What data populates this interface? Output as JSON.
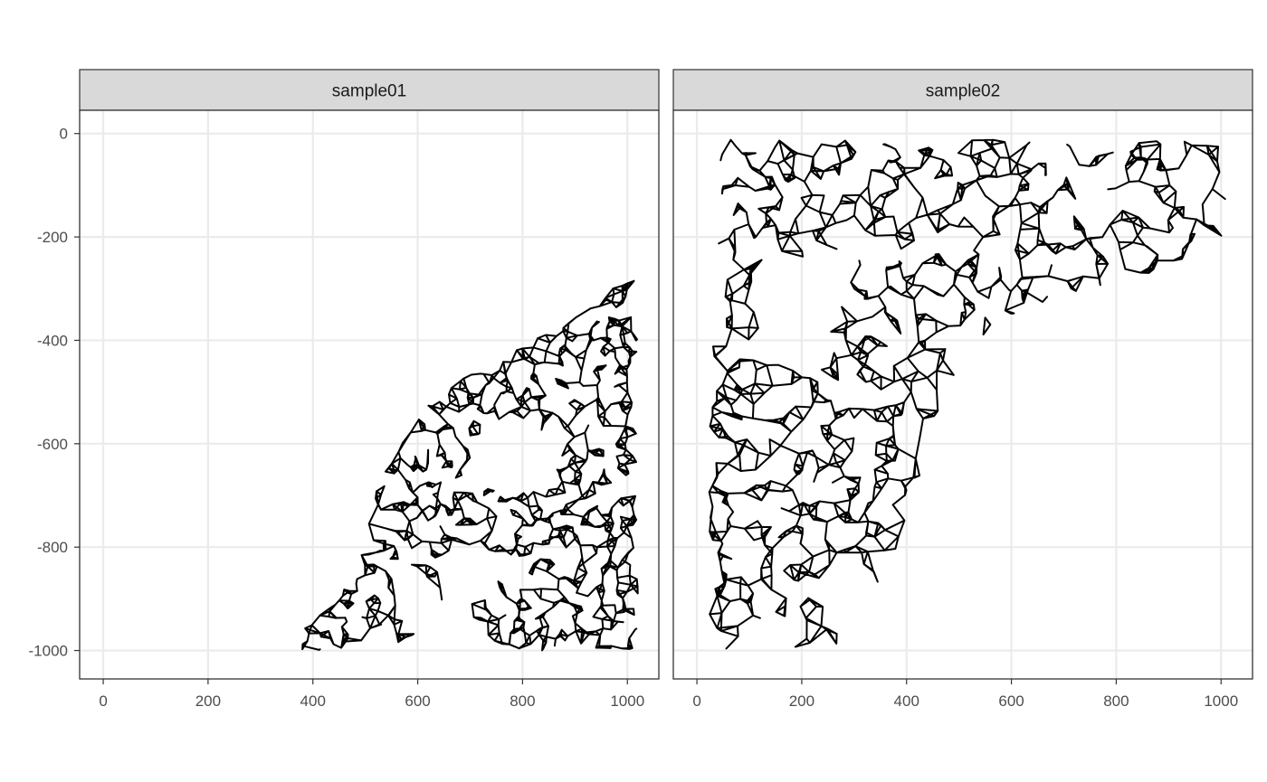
{
  "chart_data": {
    "type": "network",
    "facets": [
      {
        "label": "sample01",
        "outline": [
          [
            340,
            -1000
          ],
          [
            390,
            -950
          ],
          [
            460,
            -880
          ],
          [
            500,
            -800
          ],
          [
            510,
            -720
          ],
          [
            560,
            -580
          ],
          [
            620,
            -520
          ],
          [
            700,
            -460
          ],
          [
            800,
            -410
          ],
          [
            880,
            -370
          ],
          [
            940,
            -330
          ],
          [
            1000,
            -270
          ],
          [
            1020,
            -260
          ],
          [
            1020,
            -1000
          ],
          [
            820,
            -1000
          ],
          [
            740,
            -990
          ],
          [
            700,
            -940
          ],
          [
            680,
            -880
          ],
          [
            620,
            -920
          ],
          [
            580,
            -990
          ],
          [
            450,
            -1000
          ]
        ],
        "holes": [
          {
            "center": [
              780,
              -625
            ],
            "rx": 80,
            "ry": 70
          },
          {
            "center": [
              760,
              -660
            ],
            "rx": 32,
            "ry": 28
          },
          {
            "center": [
              700,
              -850
            ],
            "rx": 55,
            "ry": 55
          },
          {
            "center": [
              600,
              -900
            ],
            "rx": 40,
            "ry": 45
          }
        ]
      },
      {
        "label": "sample02",
        "outline": [
          [
            20,
            -980
          ],
          [
            20,
            -700
          ],
          [
            30,
            -400
          ],
          [
            40,
            -250
          ],
          [
            40,
            -50
          ],
          [
            60,
            -10
          ],
          [
            160,
            -10
          ],
          [
            300,
            -10
          ],
          [
            420,
            -20
          ],
          [
            560,
            -10
          ],
          [
            700,
            -10
          ],
          [
            800,
            -20
          ],
          [
            900,
            -10
          ],
          [
            1000,
            -20
          ],
          [
            1020,
            -60
          ],
          [
            1010,
            -200
          ],
          [
            880,
            -270
          ],
          [
            760,
            -300
          ],
          [
            650,
            -330
          ],
          [
            560,
            -380
          ],
          [
            500,
            -440
          ],
          [
            480,
            -500
          ],
          [
            450,
            -600
          ],
          [
            420,
            -680
          ],
          [
            400,
            -760
          ],
          [
            370,
            -830
          ],
          [
            330,
            -900
          ],
          [
            300,
            -960
          ],
          [
            270,
            -1000
          ],
          [
            200,
            -1000
          ],
          [
            120,
            -990
          ],
          [
            60,
            -1000
          ]
        ],
        "holes": [
          {
            "center": [
              170,
              -340
            ],
            "rx": 55,
            "ry": 110
          },
          {
            "center": [
              240,
              -290
            ],
            "rx": 50,
            "ry": 60
          },
          {
            "center": [
              280,
              -900
            ],
            "rx": 40,
            "ry": 70
          },
          {
            "center": [
              350,
              -230
            ],
            "rx": 40,
            "ry": 30
          },
          {
            "center": [
              760,
              -140
            ],
            "rx": 40,
            "ry": 40
          }
        ]
      }
    ],
    "x_ticks": [
      0,
      200,
      400,
      600,
      800,
      1000
    ],
    "y_ticks": [
      0,
      -200,
      -400,
      -600,
      -800,
      -1000
    ],
    "xlim": [
      -45,
      1060
    ],
    "ylim": [
      -1055,
      45
    ],
    "grid": true,
    "edge_color": "#000000",
    "node_color": "#c8c8c8",
    "strip_fill": "#d9d9d9"
  }
}
